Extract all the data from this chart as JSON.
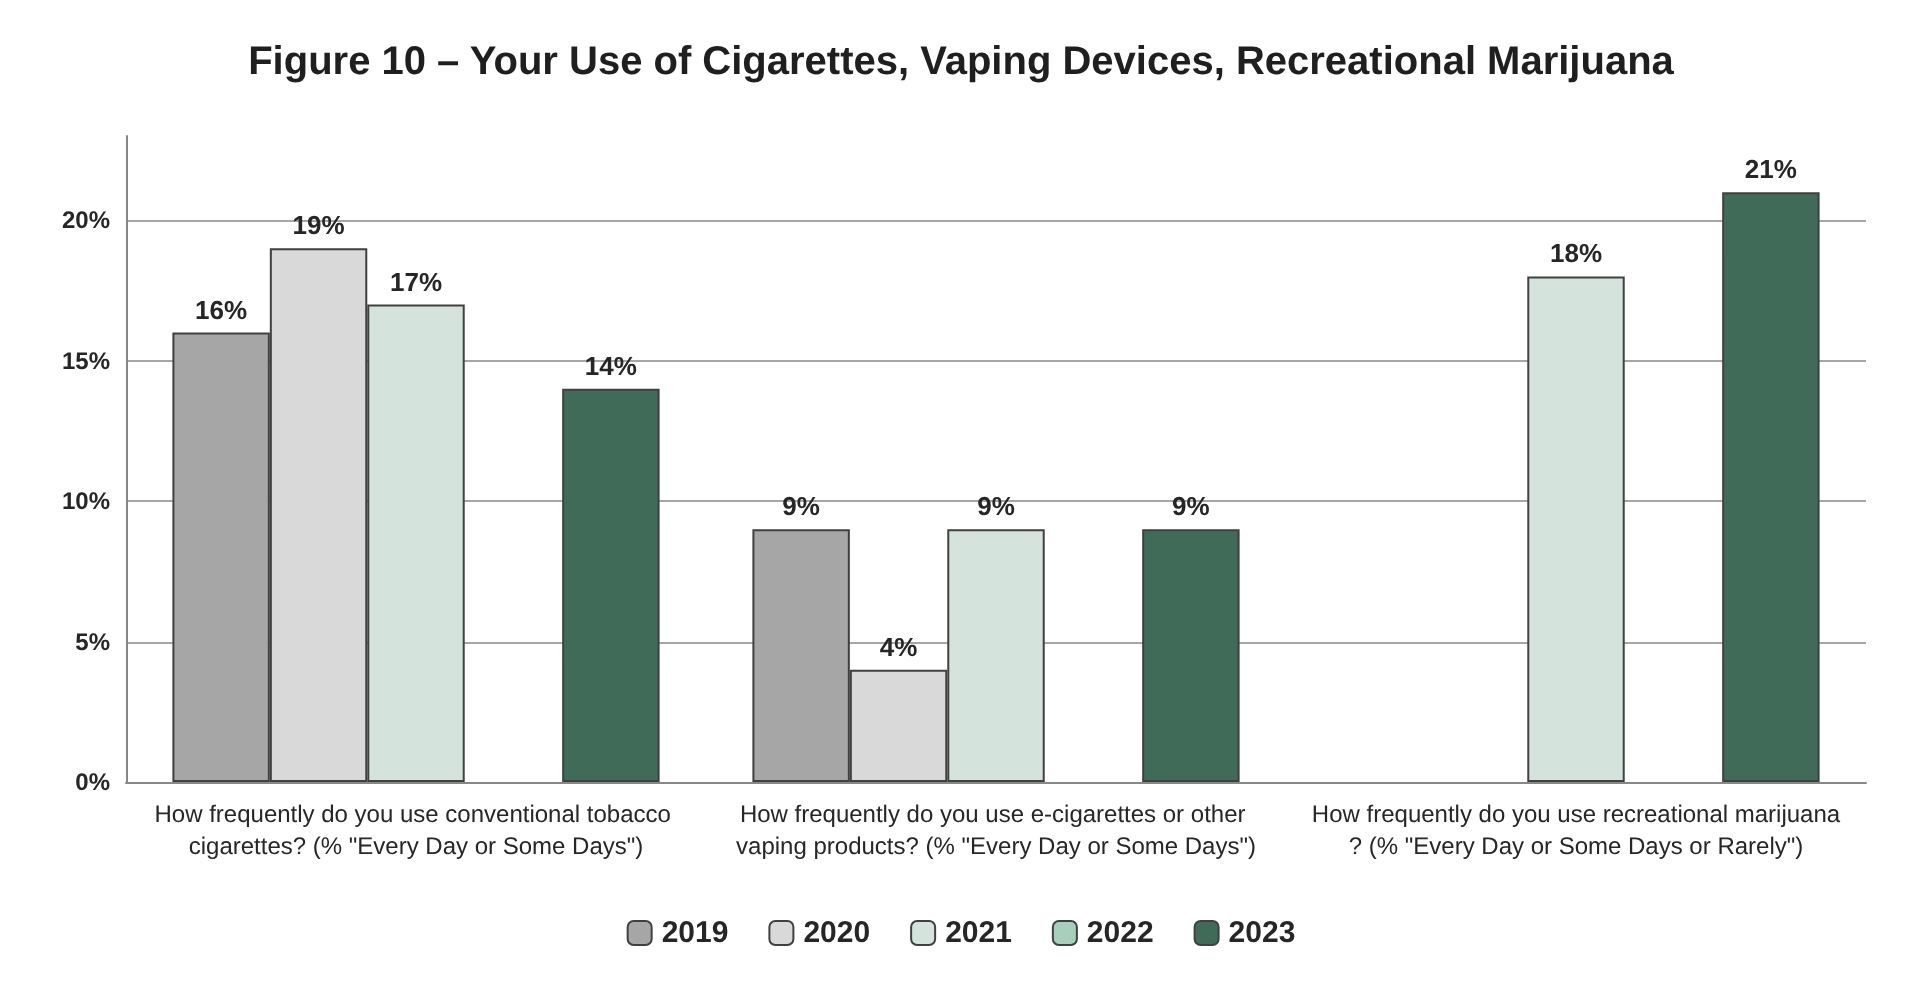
{
  "chart_data": {
    "type": "bar",
    "title": "Figure 10 – Your Use of Cigarettes, Vaping Devices, Recreational Marijuana",
    "categories": [
      "How frequently do you use conventional tobacco cigarettes? (% \"Every Day or Some Days\")",
      "How frequently do you use e-cigarettes or other vaping products? (% \"Every Day or Some Days\")",
      "How frequently do you use recreational marijuana? (% \"Every Day or Some Days or Rarely\")"
    ],
    "series": [
      {
        "name": "2019",
        "color": "#a6a6a6",
        "values": [
          16,
          9,
          null
        ],
        "value_labels": [
          "16%",
          "9%",
          null
        ]
      },
      {
        "name": "2020",
        "color": "#d9d9d9",
        "values": [
          19,
          4,
          null
        ],
        "value_labels": [
          "19%",
          "4%",
          null
        ]
      },
      {
        "name": "2021",
        "color": "#d4e4dc",
        "values": [
          17,
          9,
          18
        ],
        "value_labels": [
          "17%",
          "9%",
          "18%"
        ]
      },
      {
        "name": "2022",
        "color": "#a8cfbc",
        "values": [
          null,
          null,
          null
        ],
        "value_labels": [
          null,
          null,
          null
        ]
      },
      {
        "name": "2023",
        "color": "#406b58",
        "values": [
          14,
          9,
          21
        ],
        "value_labels": [
          "14%",
          "9%",
          "21%"
        ]
      }
    ],
    "ylim": [
      0,
      23
    ],
    "yticks": [
      {
        "value": 0,
        "label": "0%"
      },
      {
        "value": 5,
        "label": "5%"
      },
      {
        "value": 10,
        "label": "10%"
      },
      {
        "value": 15,
        "label": "15%"
      },
      {
        "value": 20,
        "label": "20%"
      }
    ],
    "grid": "y",
    "legend": "bottom"
  }
}
